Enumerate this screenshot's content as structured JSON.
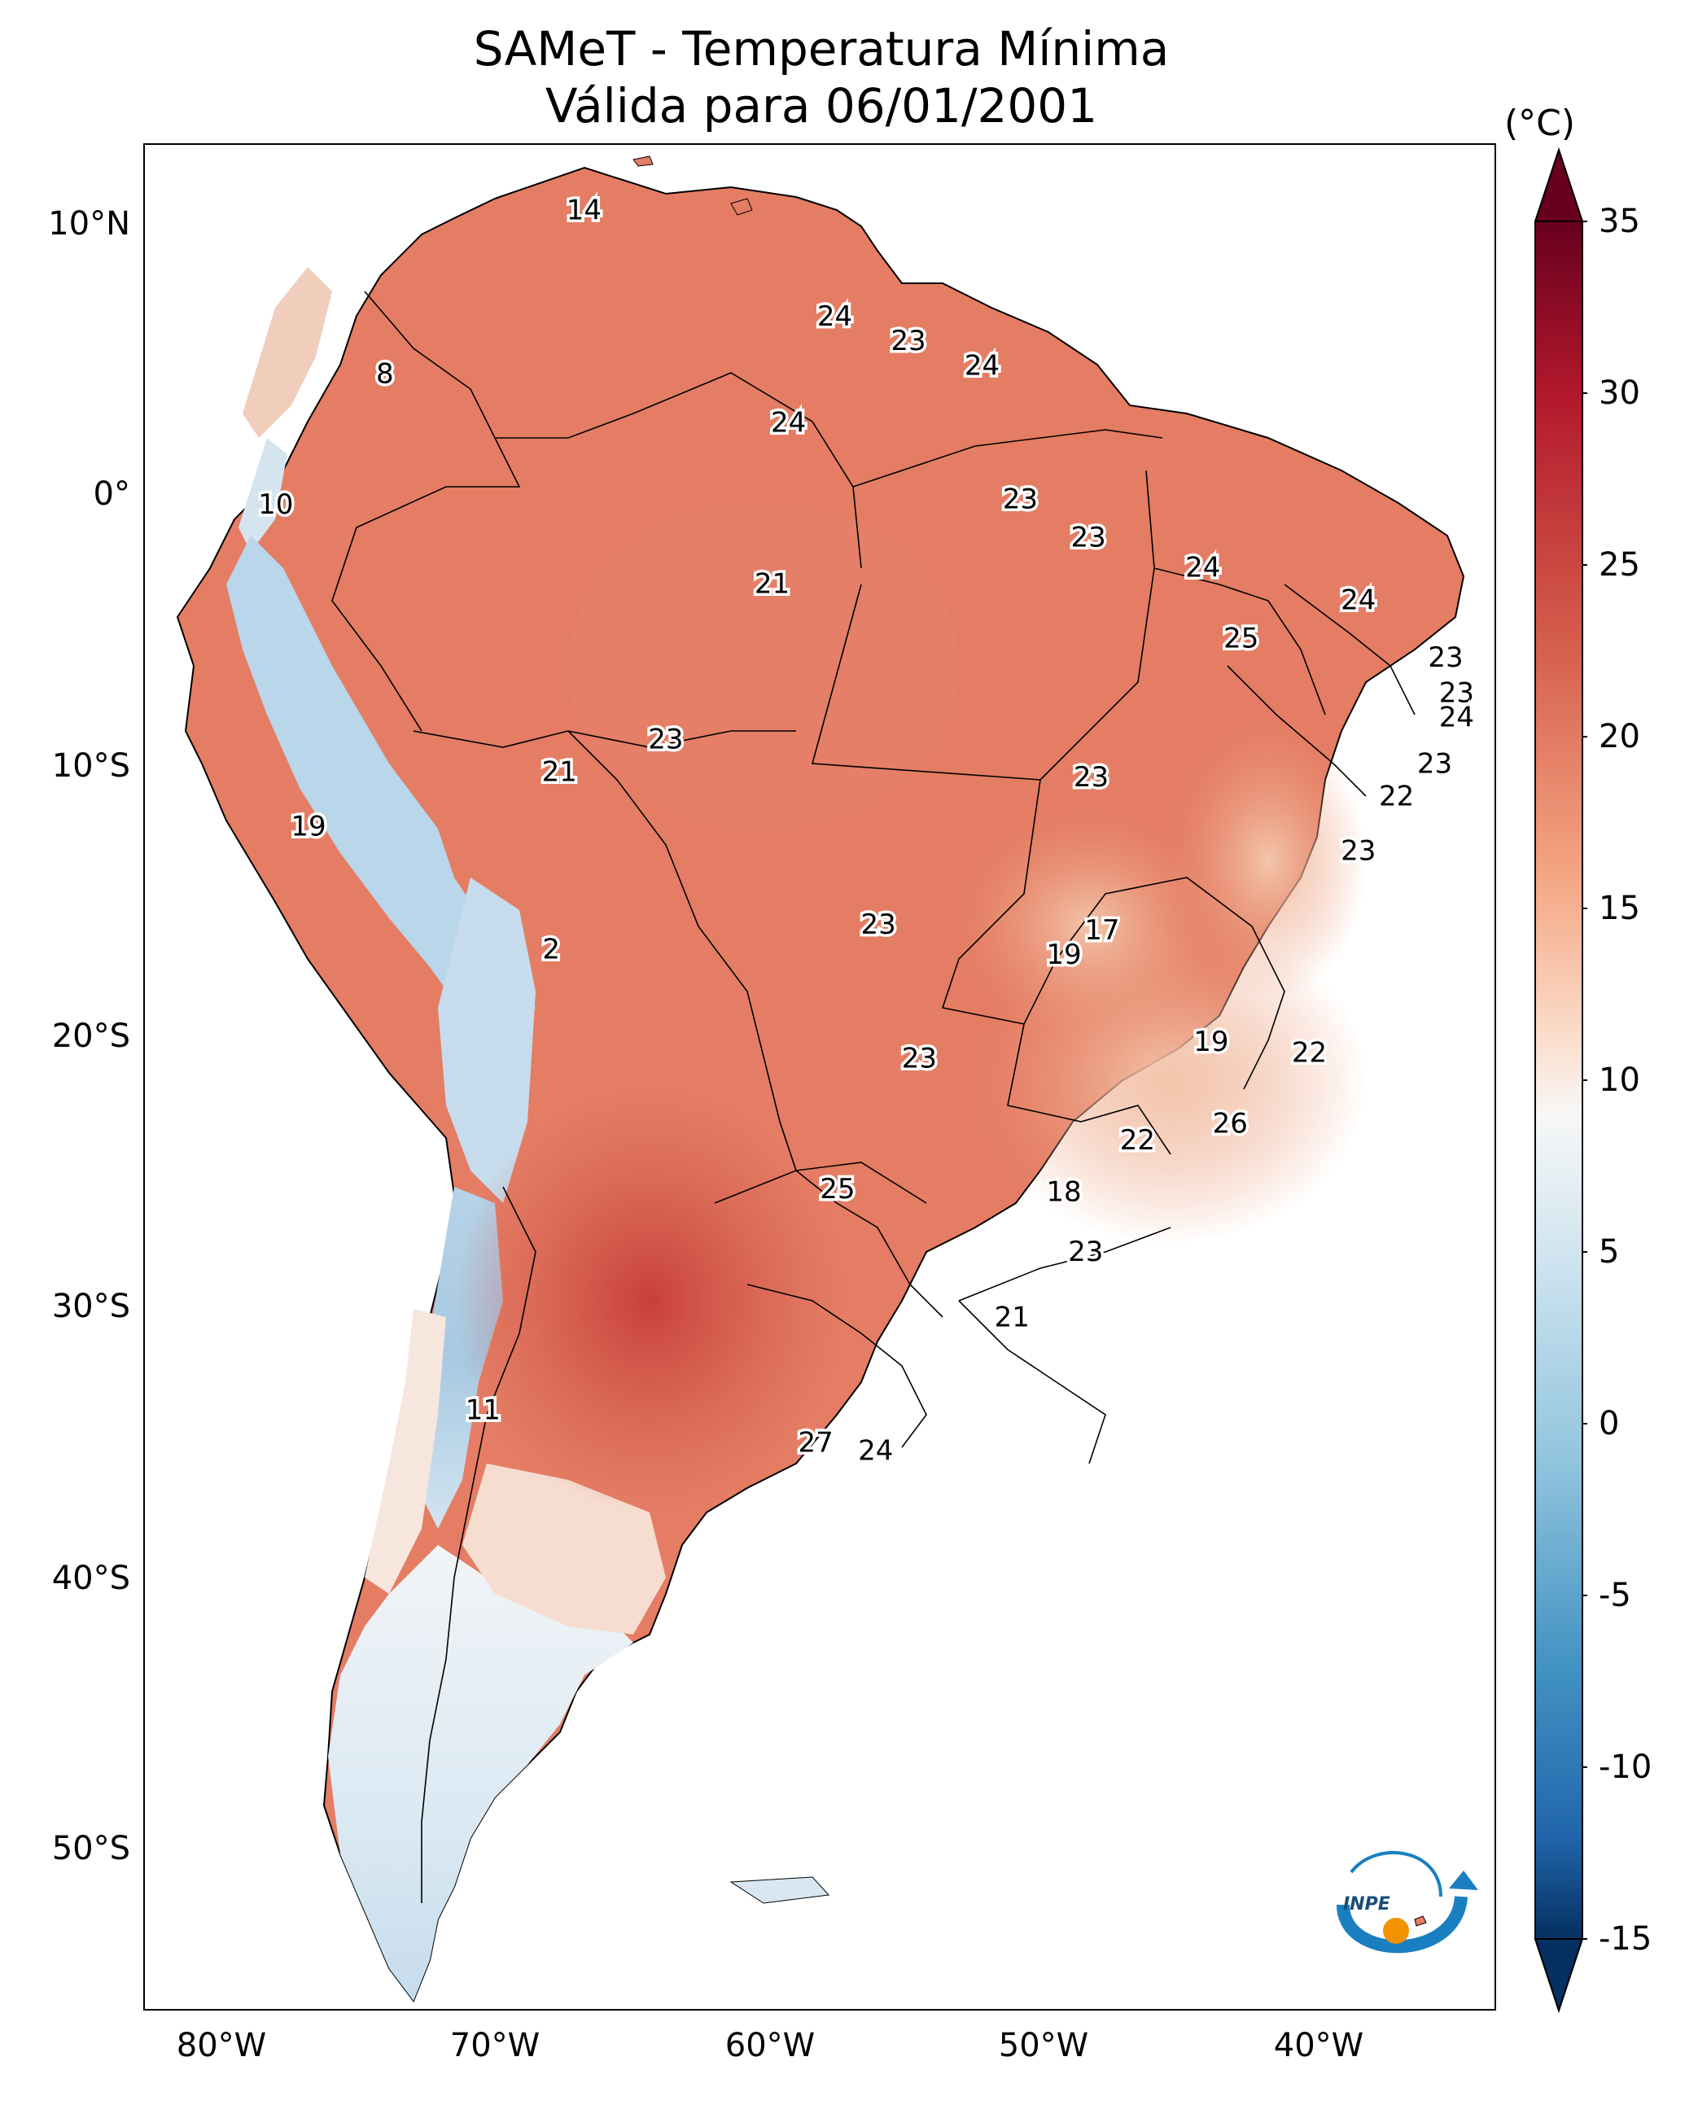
{
  "title": {
    "line1": "SAMeT - Temperatura Mínima",
    "line2": "Válida para 06/01/2001"
  },
  "colorbar": {
    "unit": "(°C)",
    "ticks": [
      "35",
      "30",
      "25",
      "20",
      "15",
      "10",
      "5",
      "0",
      "-5",
      "-10",
      "-15"
    ],
    "tick_values": [
      35,
      30,
      25,
      20,
      15,
      10,
      5,
      0,
      -5,
      -10,
      -15
    ],
    "min": -15,
    "max": 35
  },
  "axes": {
    "lat_labels": [
      {
        "text": "10°N",
        "value": 10
      },
      {
        "text": "0°",
        "value": 0
      },
      {
        "text": "10°S",
        "value": -10
      },
      {
        "text": "20°S",
        "value": -20
      },
      {
        "text": "30°S",
        "value": -30
      },
      {
        "text": "40°S",
        "value": -40
      },
      {
        "text": "50°S",
        "value": -50
      }
    ],
    "lon_labels": [
      {
        "text": "80°W",
        "value": -80
      },
      {
        "text": "70°W",
        "value": -70
      },
      {
        "text": "60°W",
        "value": -60
      },
      {
        "text": "50°W",
        "value": -50
      },
      {
        "text": "40°W",
        "value": -40
      }
    ]
  },
  "station_values": [
    {
      "text": "14",
      "lon": -66.9,
      "lat": 10.6
    },
    {
      "text": "8",
      "lon": -74.2,
      "lat": 4.6
    },
    {
      "text": "24",
      "lon": -57.7,
      "lat": 6.7
    },
    {
      "text": "23",
      "lon": -55.0,
      "lat": 5.8
    },
    {
      "text": "24",
      "lon": -52.3,
      "lat": 4.9
    },
    {
      "text": "24",
      "lon": -59.4,
      "lat": 2.8
    },
    {
      "text": "10",
      "lon": -78.2,
      "lat": -0.2
    },
    {
      "text": "23",
      "lon": -50.9,
      "lat": 0.0
    },
    {
      "text": "23",
      "lon": -48.4,
      "lat": -1.4
    },
    {
      "text": "24",
      "lon": -44.2,
      "lat": -2.5
    },
    {
      "text": "21",
      "lon": -60.0,
      "lat": -3.1
    },
    {
      "text": "24",
      "lon": -38.5,
      "lat": -3.7
    },
    {
      "text": "25",
      "lon": -42.8,
      "lat": -5.1
    },
    {
      "text": "23",
      "lon": -35.3,
      "lat": -5.8
    },
    {
      "text": "23",
      "lon": -34.9,
      "lat": -7.1
    },
    {
      "text": "24",
      "lon": -34.9,
      "lat": -8.0
    },
    {
      "text": "23",
      "lon": -63.9,
      "lat": -8.8
    },
    {
      "text": "23",
      "lon": -35.7,
      "lat": -9.7
    },
    {
      "text": "21",
      "lon": -67.8,
      "lat": -10.0
    },
    {
      "text": "23",
      "lon": -48.3,
      "lat": -10.2
    },
    {
      "text": "22",
      "lon": -37.1,
      "lat": -10.9
    },
    {
      "text": "19",
      "lon": -77.0,
      "lat": -12.0
    },
    {
      "text": "23",
      "lon": -38.5,
      "lat": -12.9
    },
    {
      "text": "23",
      "lon": -56.1,
      "lat": -15.6
    },
    {
      "text": "17",
      "lon": -47.9,
      "lat": -15.8
    },
    {
      "text": "2",
      "lon": -68.1,
      "lat": -16.5
    },
    {
      "text": "19",
      "lon": -49.3,
      "lat": -16.7
    },
    {
      "text": "19",
      "lon": -43.9,
      "lat": -19.9
    },
    {
      "text": "22",
      "lon": -40.3,
      "lat": -20.3
    },
    {
      "text": "23",
      "lon": -54.6,
      "lat": -20.5
    },
    {
      "text": "26",
      "lon": -43.2,
      "lat": -22.9
    },
    {
      "text": "22",
      "lon": -46.6,
      "lat": -23.5
    },
    {
      "text": "25",
      "lon": -57.6,
      "lat": -25.3
    },
    {
      "text": "18",
      "lon": -49.3,
      "lat": -25.4
    },
    {
      "text": "23",
      "lon": -48.5,
      "lat": -27.6
    },
    {
      "text": "21",
      "lon": -51.2,
      "lat": -30.0
    },
    {
      "text": "11",
      "lon": -70.6,
      "lat": -33.4
    },
    {
      "text": "27",
      "lon": -58.4,
      "lat": -34.6
    },
    {
      "text": "24",
      "lon": -56.2,
      "lat": -34.9
    }
  ],
  "logo": {
    "text": "INPE",
    "colors": {
      "blue": "#1a7fc1",
      "orange": "#f39200"
    }
  }
}
